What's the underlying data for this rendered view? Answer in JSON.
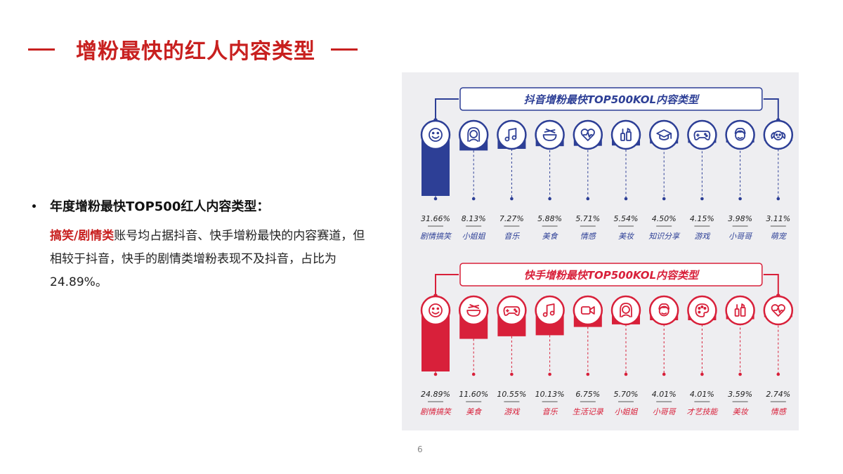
{
  "header": {
    "title": "增粉最快的红人内容类型"
  },
  "bullet": {
    "heading": "年度增粉最快TOP500红人内容类型：",
    "highlight": "搞笑/剧情类",
    "body": "账号均占据抖音、快手增粉最快的内容赛道，但相较于抖音，快手的剧情类增粉表现不及抖音，占比为24.89%。"
  },
  "page_number": "6",
  "colors": {
    "accent": "#c8201f",
    "douyin": "#2d3f96",
    "kuaishou": "#d8203a",
    "panel_bg": "#eeeef1"
  },
  "chart_data": [
    {
      "type": "bar",
      "title": "抖音增粉最快TOP500KOL内容类型",
      "categories": [
        "剧情搞笑",
        "小姐姐",
        "音乐",
        "美食",
        "情感",
        "美妆",
        "知识分享",
        "游戏",
        "小哥哥",
        "萌宠"
      ],
      "value_labels": [
        "31.66%",
        "8.13%",
        "7.27%",
        "5.88%",
        "5.71%",
        "5.54%",
        "4.50%",
        "4.15%",
        "3.98%",
        "3.11%"
      ],
      "values": [
        31.66,
        8.13,
        7.27,
        5.88,
        5.71,
        5.54,
        4.5,
        4.15,
        3.98,
        3.11
      ],
      "icons": [
        "smiley-icon",
        "girl-icon",
        "music-icon",
        "food-bowl-icon",
        "heartbeat-icon",
        "makeup-icon",
        "graduation-cap-icon",
        "gamepad-icon",
        "boy-icon",
        "dog-icon"
      ],
      "unit": "%"
    },
    {
      "type": "bar",
      "title": "快手增粉最快TOP500KOL内容类型",
      "categories": [
        "剧情搞笑",
        "美食",
        "游戏",
        "音乐",
        "生活记录",
        "小姐姐",
        "小哥哥",
        "才艺技能",
        "美妆",
        "情感"
      ],
      "value_labels": [
        "24.89%",
        "11.60%",
        "10.55%",
        "10.13%",
        "6.75%",
        "5.70%",
        "4.01%",
        "4.01%",
        "3.59%",
        "2.74%"
      ],
      "values": [
        24.89,
        11.6,
        10.55,
        10.13,
        6.75,
        5.7,
        4.01,
        4.01,
        3.59,
        2.74
      ],
      "icons": [
        "smiley-icon",
        "food-bowl-icon",
        "gamepad-icon",
        "music-icon",
        "video-camera-icon",
        "girl-icon",
        "boy-icon",
        "palette-icon",
        "makeup-icon",
        "heartbeat-icon"
      ],
      "unit": "%"
    }
  ]
}
